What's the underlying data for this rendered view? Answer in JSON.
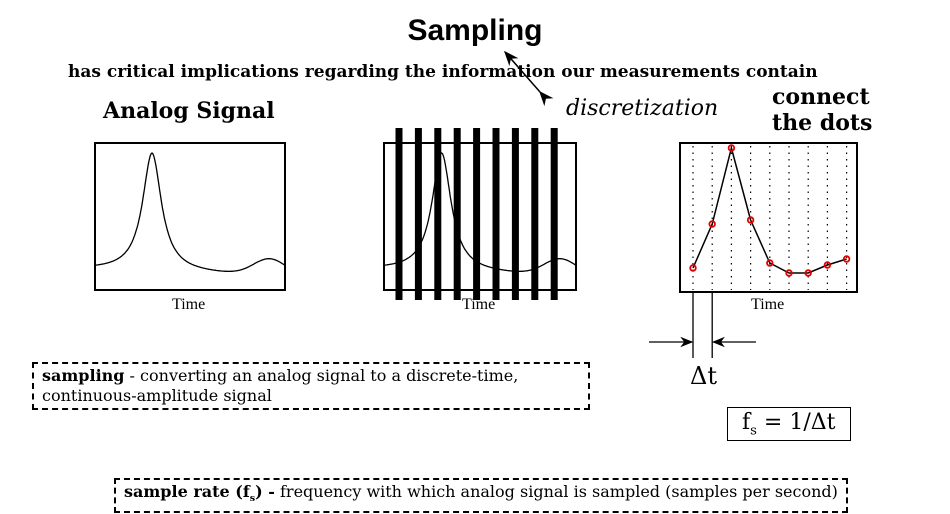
{
  "title": "Sampling",
  "subtitle": "has critical implications regarding the information our measurements contain",
  "analog_label": "Analog Signal",
  "discretization_label": "discretization",
  "connect_label_line1": "connect",
  "connect_label_line2": "the dots",
  "axis_label": "Time",
  "delta_t": "Δt",
  "formula": {
    "f": "f",
    "sub": "s",
    "rest": " = 1/Δt"
  },
  "sampling_def": {
    "term": "sampling",
    "text": " - converting an analog signal to a discrete-time, continuous-amplitude signal"
  },
  "rate_def": {
    "term": "sample rate (f",
    "sub": "s",
    "term_end": ") -",
    "text": " frequency with which analog signal is sampled (samples per second)"
  },
  "colors": {
    "sample_point": "#e00000",
    "ink": "#000000"
  }
}
